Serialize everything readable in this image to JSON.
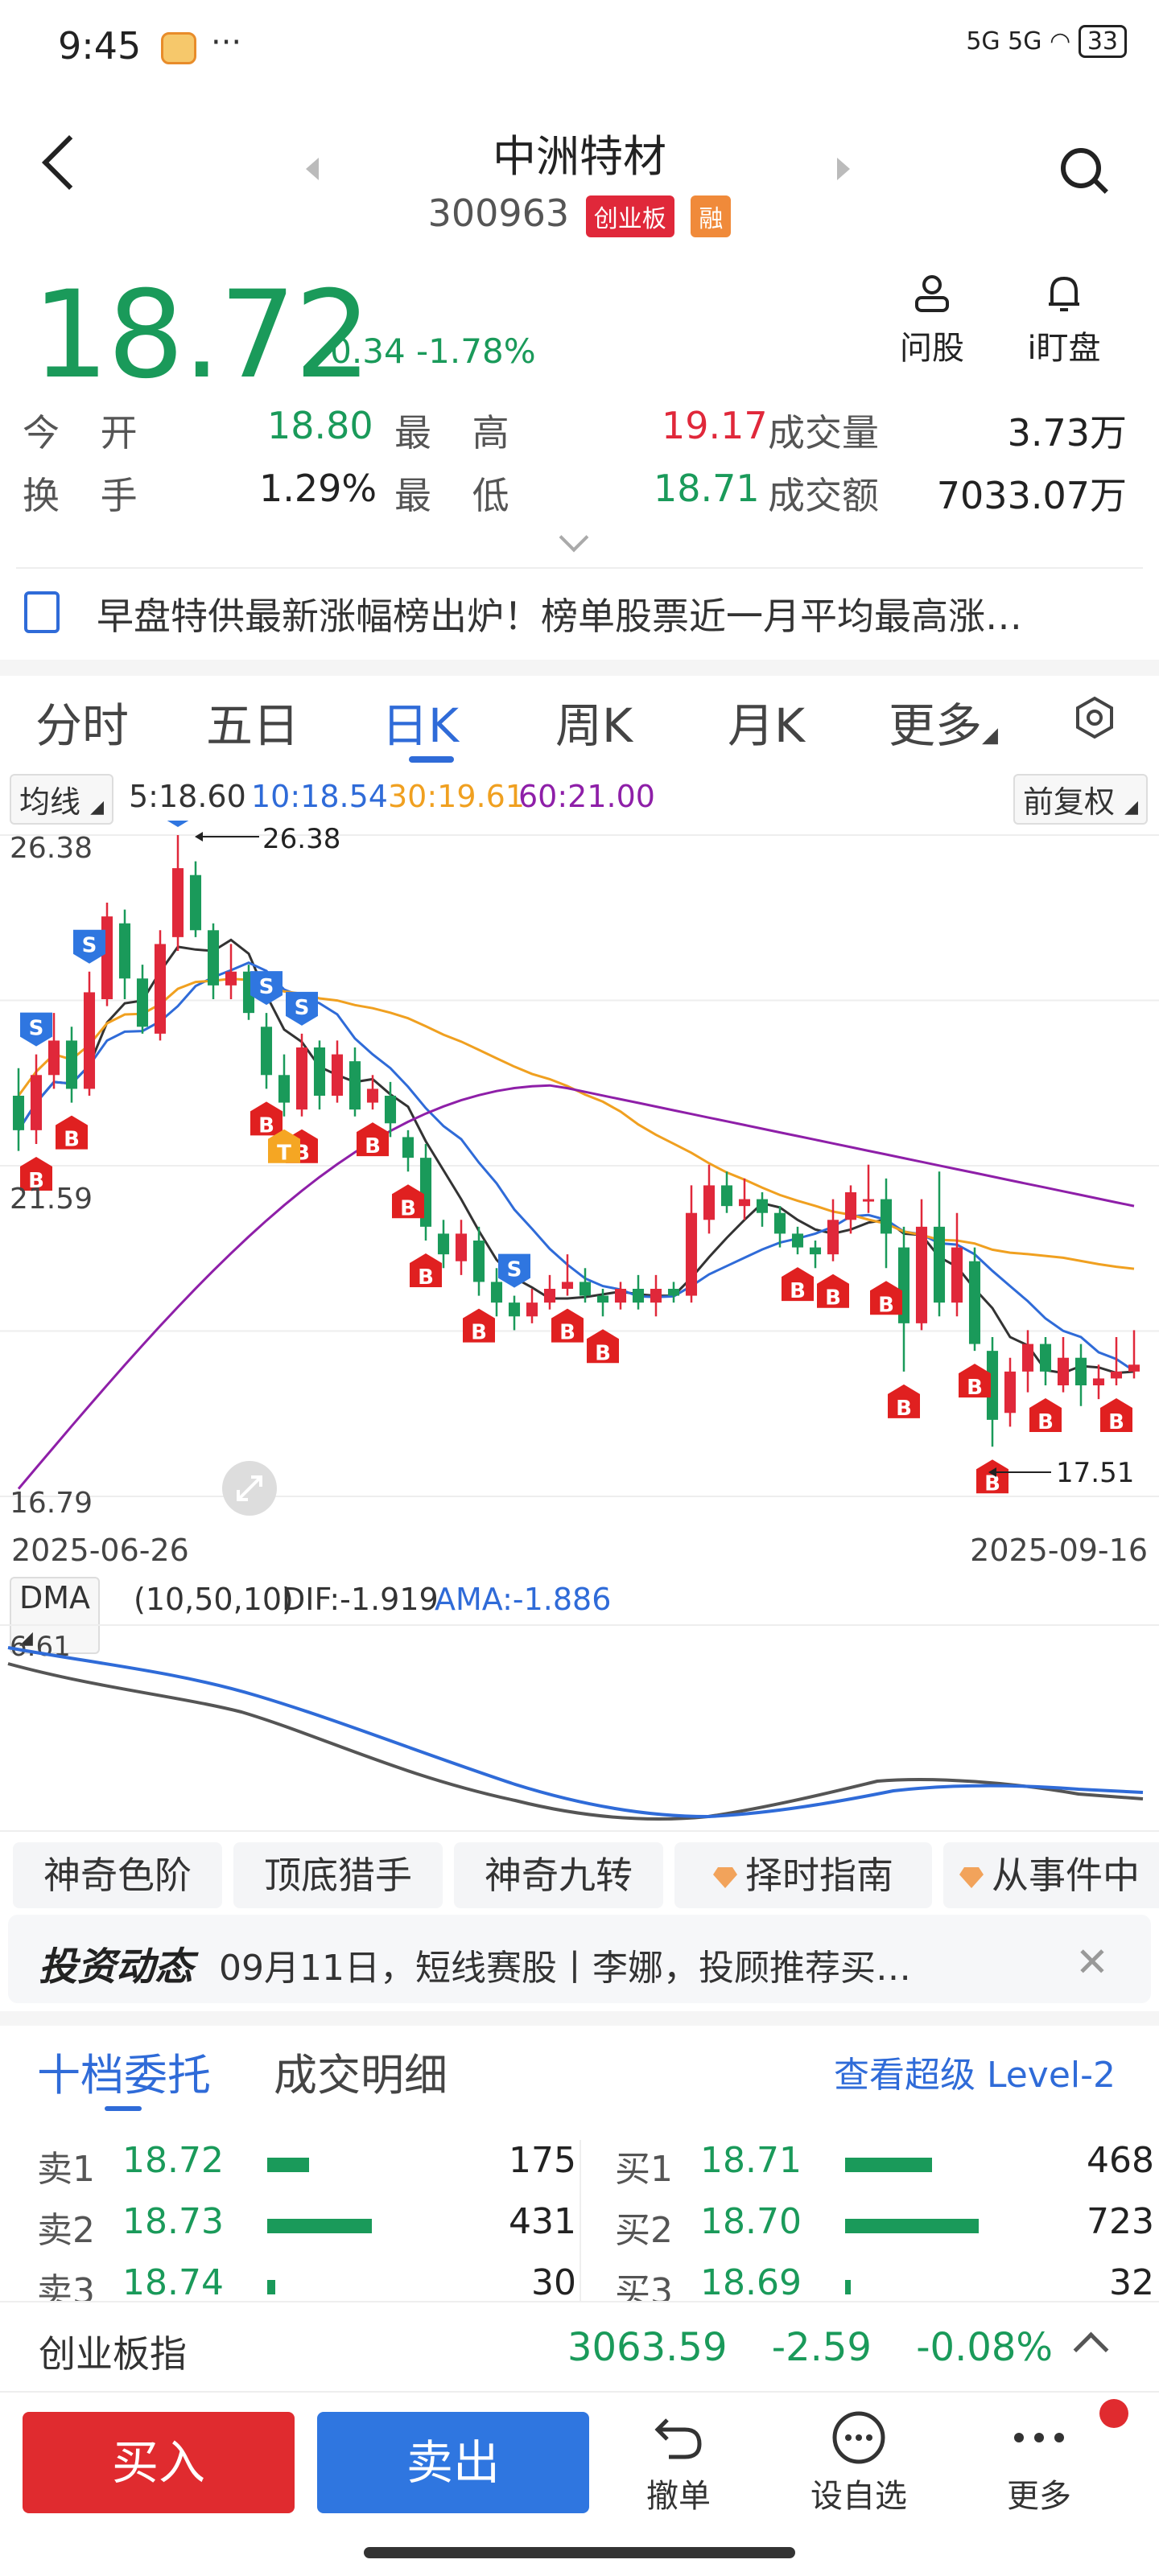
{
  "status_bar": {
    "time": "9:45",
    "dots": "···",
    "battery": "33",
    "signal": "5G 5G"
  },
  "header": {
    "title": "中洲特材",
    "code": "300963",
    "board_tag": "创业板",
    "margin_tag": "融",
    "ask_label": "问股",
    "watch_label": "i盯盘"
  },
  "quote": {
    "price": "18.72",
    "change": "-0.34",
    "change_pct": "-1.78%",
    "open_label": "今 开",
    "open": "18.80",
    "high_label": "最 高",
    "high": "19.17",
    "volume_label": "成交量",
    "volume": "3.73万",
    "turnover_label": "换 手",
    "turnover": "1.29%",
    "low_label": "最 低",
    "low": "18.71",
    "amount_label": "成交额",
    "amount": "7033.07万"
  },
  "news": {
    "text": "早盘特供最新涨幅榜出炉！榜单股票近一月平均最高涨…"
  },
  "tabs": [
    {
      "label": "分时"
    },
    {
      "label": "五日"
    },
    {
      "label": "日K"
    },
    {
      "label": "周K"
    },
    {
      "label": "月K"
    },
    {
      "label": "更多"
    }
  ],
  "ma": {
    "selector": "均线",
    "ma5": "5:18.60",
    "ma10": "10:18.54",
    "ma30": "30:19.61",
    "ma60": "60:21.00",
    "adjust": "前复权",
    "color5": "#333333",
    "color10": "#2f6bd8",
    "color30": "#f0a020",
    "color60": "#8e1fa8"
  },
  "chart": {
    "top_label": "26.38",
    "mid_label": "21.59",
    "bottom_label": "16.79",
    "max_marker": "26.38",
    "min_marker": "17.51",
    "date_start": "2025-06-26",
    "date_end": "2025-09-16"
  },
  "chart_data": {
    "type": "candlestick",
    "x_start": "2025-06-26",
    "x_end": "2025-09-16",
    "ylim": [
      16.79,
      26.38
    ],
    "y_ticks": [
      26.38,
      21.59,
      16.79
    ],
    "annotations": [
      {
        "label": "26.38",
        "kind": "high"
      },
      {
        "label": "17.51",
        "kind": "low"
      }
    ],
    "candles": [
      [
        22.6,
        22.1,
        23.0,
        21.8
      ],
      [
        22.1,
        22.9,
        23.2,
        21.9
      ],
      [
        22.9,
        23.4,
        23.8,
        22.7
      ],
      [
        23.4,
        22.7,
        23.6,
        22.5
      ],
      [
        22.7,
        24.1,
        24.4,
        22.6
      ],
      [
        24.0,
        25.2,
        25.4,
        23.9
      ],
      [
        25.1,
        24.3,
        25.3,
        24.0
      ],
      [
        24.3,
        23.6,
        24.5,
        23.5
      ],
      [
        23.5,
        24.8,
        25.0,
        23.4
      ],
      [
        24.9,
        25.9,
        26.38,
        24.7
      ],
      [
        25.8,
        25.0,
        26.0,
        24.9
      ],
      [
        25.0,
        24.2,
        25.1,
        24.0
      ],
      [
        24.2,
        24.4,
        24.8,
        24.0
      ],
      [
        24.4,
        23.8,
        24.5,
        23.7
      ],
      [
        23.6,
        22.9,
        23.8,
        22.7
      ],
      [
        22.9,
        22.5,
        23.2,
        22.3
      ],
      [
        22.4,
        23.3,
        23.5,
        22.3
      ],
      [
        23.3,
        22.6,
        23.4,
        22.4
      ],
      [
        22.6,
        23.2,
        23.4,
        22.5
      ],
      [
        23.1,
        22.4,
        23.3,
        22.3
      ],
      [
        22.5,
        22.7,
        22.9,
        22.4
      ],
      [
        22.6,
        22.2,
        22.8,
        22.0
      ],
      [
        22.0,
        21.7,
        22.1,
        21.5
      ],
      [
        21.7,
        20.7,
        21.9,
        20.5
      ],
      [
        20.6,
        20.3,
        20.8,
        20.1
      ],
      [
        20.2,
        20.6,
        20.8,
        20.0
      ],
      [
        20.5,
        19.9,
        20.7,
        19.7
      ],
      [
        19.9,
        19.6,
        20.1,
        19.4
      ],
      [
        19.6,
        19.4,
        19.7,
        19.2
      ],
      [
        19.4,
        19.6,
        19.8,
        19.3
      ],
      [
        19.6,
        19.8,
        20.0,
        19.5
      ],
      [
        19.8,
        19.9,
        20.3,
        19.7
      ],
      [
        19.9,
        19.7,
        20.1,
        19.6
      ],
      [
        19.7,
        19.6,
        19.8,
        19.4
      ],
      [
        19.6,
        19.8,
        19.9,
        19.5
      ],
      [
        19.8,
        19.6,
        20.0,
        19.5
      ],
      [
        19.6,
        19.8,
        20.0,
        19.4
      ],
      [
        19.8,
        19.7,
        19.9,
        19.6
      ],
      [
        19.7,
        20.9,
        21.3,
        19.6
      ],
      [
        20.8,
        21.3,
        21.6,
        20.6
      ],
      [
        21.3,
        21.0,
        21.5,
        20.9
      ],
      [
        21.0,
        21.1,
        21.4,
        20.8
      ],
      [
        21.1,
        20.9,
        21.2,
        20.7
      ],
      [
        20.9,
        20.6,
        21.0,
        20.4
      ],
      [
        20.6,
        20.4,
        20.7,
        20.3
      ],
      [
        20.4,
        20.3,
        20.5,
        20.1
      ],
      [
        20.3,
        20.8,
        21.1,
        20.2
      ],
      [
        20.8,
        21.2,
        21.3,
        20.6
      ],
      [
        21.1,
        21.1,
        21.6,
        20.9
      ],
      [
        21.1,
        20.6,
        21.4,
        20.1
      ],
      [
        20.4,
        19.3,
        20.7,
        18.6
      ],
      [
        19.3,
        20.7,
        21.1,
        19.2
      ],
      [
        20.7,
        19.6,
        21.5,
        19.4
      ],
      [
        19.6,
        20.4,
        20.9,
        19.4
      ],
      [
        20.2,
        19.0,
        20.4,
        18.9
      ],
      [
        18.9,
        17.9,
        19.1,
        17.51
      ],
      [
        18.0,
        18.6,
        18.8,
        17.8
      ],
      [
        18.6,
        19.0,
        19.2,
        18.3
      ],
      [
        19.0,
        18.6,
        19.1,
        18.4
      ],
      [
        18.4,
        18.8,
        19.1,
        18.3
      ],
      [
        18.8,
        18.4,
        19.0,
        18.1
      ],
      [
        18.4,
        18.5,
        18.7,
        18.2
      ],
      [
        18.5,
        18.6,
        19.1,
        18.4
      ],
      [
        18.6,
        18.7,
        19.2,
        18.5
      ]
    ]
  },
  "dma": {
    "selector": "DMA",
    "params": "(10,50,10)",
    "dif": "DIF:-1.919",
    "ama": "AMA:-1.886",
    "top_label": "6.61"
  },
  "features": [
    {
      "label": "神奇色阶"
    },
    {
      "label": "顶底猎手"
    },
    {
      "label": "神奇九转"
    },
    {
      "label": "择时指南"
    },
    {
      "label": "从事件中"
    }
  ],
  "invest": {
    "logo": "投资动态",
    "text": "09月11日，短线赛股丨李娜，投顾推荐买…"
  },
  "orders": {
    "tab1": "十档委托",
    "tab2": "成交明细",
    "level2": "查看超级 Level-2",
    "sell": [
      {
        "label": "卖1",
        "price": "18.72",
        "qty": "175",
        "frac": 0.21
      },
      {
        "label": "卖2",
        "price": "18.73",
        "qty": "431",
        "frac": 0.53
      },
      {
        "label": "卖3",
        "price": "18.74",
        "qty": "30",
        "frac": 0.04
      }
    ],
    "buy": [
      {
        "label": "买1",
        "price": "18.71",
        "qty": "468",
        "frac": 0.65
      },
      {
        "label": "买2",
        "price": "18.70",
        "qty": "723",
        "frac": 1.0
      },
      {
        "label": "买3",
        "price": "18.69",
        "qty": "32",
        "frac": 0.04
      }
    ]
  },
  "index": {
    "name": "创业板指",
    "value": "3063.59",
    "change": "-2.59",
    "pct": "-0.08%"
  },
  "actions": {
    "buy": "买入",
    "sell": "卖出",
    "cancel": "撤单",
    "watchlist": "设自选",
    "more": "更多"
  }
}
